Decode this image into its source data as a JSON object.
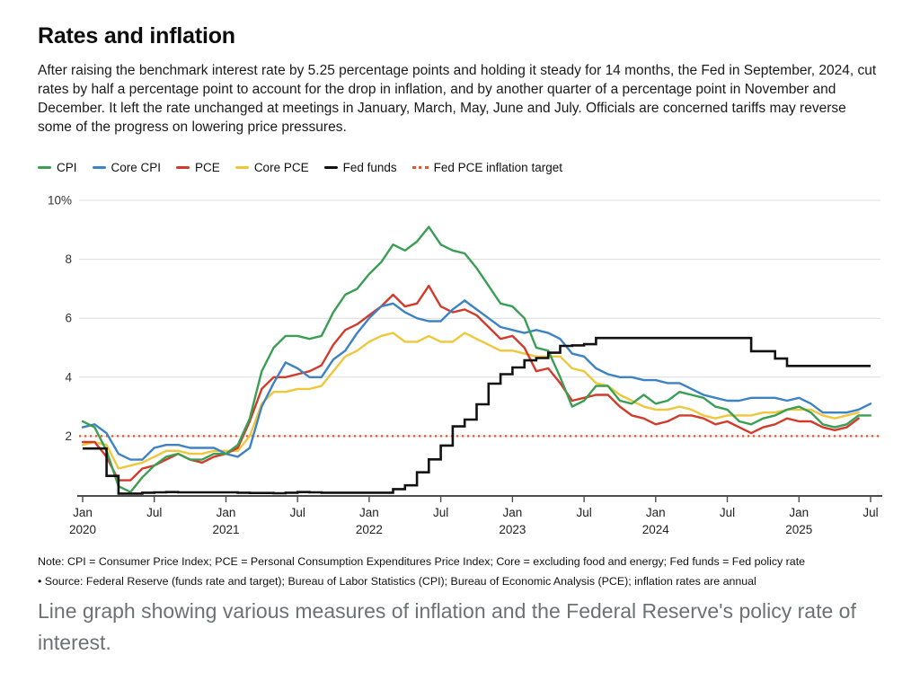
{
  "page": {
    "title": "Rates and inflation",
    "intro": "After raising the benchmark interest rate by 5.25 percentage points and holding it steady for 14 months, the Fed in September, 2024, cut rates by half a percentage point to account for the drop in inflation, and by another quarter of a percentage point in November and December. It left the rate unchanged at meetings in January, March, May, June and July. Officials are concerned tariffs may reverse some of the progress on lowering price pressures.",
    "note_line1": "Note: CPI = Consumer Price Index; PCE = Personal Consumption Expenditures Price Index; Core = excluding food and energy; Fed funds = Fed policy rate",
    "note_line2": "• Source: Federal Reserve (funds rate and target); Bureau of Labor Statistics (CPI); Bureau of Economic Analysis (PCE); inflation rates are annual",
    "caption": "Line graph showing various measures of inflation and the Federal Reserve's policy rate of interest."
  },
  "colors": {
    "cpi": "#3a9e54",
    "core_cpi": "#3d83c4",
    "pce": "#d23b2c",
    "core_pce": "#eec73c",
    "fed_funds": "#111111",
    "target": "#e4572e",
    "grid": "#dcdcdc",
    "axis": "#4d4d4d",
    "tick_label": "#222222",
    "y_label": "#333333"
  },
  "chart_data": {
    "type": "line",
    "title": "Rates and inflation",
    "xlabel": "",
    "ylabel": "percent",
    "y_unit": "%",
    "ylim": [
      0,
      10.5
    ],
    "grid": true,
    "legend_position": "top",
    "x_months_start": "Jan 2020",
    "x_months_end": "Jul 2025",
    "y_ticks": [
      2,
      4,
      6,
      8,
      10
    ],
    "y_top_tick_label": "10%",
    "x_ticks": [
      {
        "m": 0,
        "label": "Jan",
        "year": "2020"
      },
      {
        "m": 6,
        "label": "Jul"
      },
      {
        "m": 12,
        "label": "Jan",
        "year": "2021"
      },
      {
        "m": 18,
        "label": "Jul"
      },
      {
        "m": 24,
        "label": "Jan",
        "year": "2022"
      },
      {
        "m": 30,
        "label": "Jul"
      },
      {
        "m": 36,
        "label": "Jan",
        "year": "2023"
      },
      {
        "m": 42,
        "label": "Jul"
      },
      {
        "m": 48,
        "label": "Jan",
        "year": "2024"
      },
      {
        "m": 54,
        "label": "Jul"
      },
      {
        "m": 60,
        "label": "Jan",
        "year": "2025"
      },
      {
        "m": 66,
        "label": "Jul"
      }
    ],
    "series": [
      {
        "name": "CPI",
        "key": "cpi",
        "style": "line",
        "color": "#3a9e54",
        "values": [
          2.5,
          2.3,
          1.5,
          0.3,
          0.1,
          0.6,
          1.0,
          1.3,
          1.4,
          1.2,
          1.2,
          1.4,
          1.4,
          1.7,
          2.6,
          4.2,
          5.0,
          5.4,
          5.4,
          5.3,
          5.4,
          6.2,
          6.8,
          7.0,
          7.5,
          7.9,
          8.5,
          8.3,
          8.6,
          9.1,
          8.5,
          8.3,
          8.2,
          7.7,
          7.1,
          6.5,
          6.4,
          6.0,
          5.0,
          4.9,
          4.0,
          3.0,
          3.2,
          3.7,
          3.7,
          3.2,
          3.1,
          3.4,
          3.1,
          3.2,
          3.5,
          3.4,
          3.3,
          3.0,
          2.9,
          2.5,
          2.4,
          2.6,
          2.7,
          2.9,
          3.0,
          2.8,
          2.4,
          2.3,
          2.4,
          2.7,
          2.7
        ]
      },
      {
        "name": "Core CPI",
        "key": "core_cpi",
        "style": "line",
        "color": "#3d83c4",
        "values": [
          2.3,
          2.4,
          2.1,
          1.4,
          1.2,
          1.2,
          1.6,
          1.7,
          1.7,
          1.6,
          1.6,
          1.6,
          1.4,
          1.3,
          1.6,
          3.0,
          3.8,
          4.5,
          4.3,
          4.0,
          4.0,
          4.6,
          4.9,
          5.5,
          6.0,
          6.4,
          6.5,
          6.2,
          6.0,
          5.9,
          5.9,
          6.3,
          6.6,
          6.3,
          6.0,
          5.7,
          5.6,
          5.5,
          5.6,
          5.5,
          5.3,
          4.8,
          4.7,
          4.3,
          4.1,
          4.0,
          4.0,
          3.9,
          3.9,
          3.8,
          3.8,
          3.6,
          3.4,
          3.3,
          3.2,
          3.2,
          3.3,
          3.3,
          3.3,
          3.2,
          3.3,
          3.1,
          2.8,
          2.8,
          2.8,
          2.9,
          3.1
        ]
      },
      {
        "name": "PCE",
        "key": "pce",
        "style": "line",
        "color": "#d23b2c",
        "values": [
          1.8,
          1.8,
          1.3,
          0.5,
          0.5,
          0.9,
          1.0,
          1.2,
          1.4,
          1.2,
          1.1,
          1.3,
          1.4,
          1.6,
          2.5,
          3.6,
          4.0,
          4.0,
          4.1,
          4.2,
          4.4,
          5.1,
          5.6,
          5.8,
          6.1,
          6.4,
          6.8,
          6.4,
          6.5,
          7.1,
          6.4,
          6.2,
          6.3,
          6.1,
          5.7,
          5.3,
          5.4,
          5.0,
          4.2,
          4.3,
          3.8,
          3.2,
          3.3,
          3.4,
          3.4,
          3.0,
          2.7,
          2.6,
          2.4,
          2.5,
          2.7,
          2.7,
          2.6,
          2.4,
          2.5,
          2.3,
          2.1,
          2.3,
          2.4,
          2.6,
          2.5,
          2.5,
          2.3,
          2.2,
          2.3,
          2.6
        ]
      },
      {
        "name": "Core PCE",
        "key": "core_pce",
        "style": "line",
        "color": "#eec73c",
        "values": [
          1.7,
          1.8,
          1.7,
          0.9,
          1.0,
          1.1,
          1.3,
          1.5,
          1.5,
          1.4,
          1.4,
          1.5,
          1.5,
          1.5,
          2.0,
          3.1,
          3.5,
          3.5,
          3.6,
          3.6,
          3.7,
          4.2,
          4.7,
          4.9,
          5.2,
          5.4,
          5.5,
          5.2,
          5.2,
          5.4,
          5.2,
          5.2,
          5.5,
          5.3,
          5.1,
          4.9,
          4.9,
          4.8,
          4.7,
          4.7,
          4.7,
          4.3,
          4.2,
          3.8,
          3.7,
          3.4,
          3.2,
          3.0,
          2.9,
          2.9,
          3.0,
          2.9,
          2.7,
          2.6,
          2.7,
          2.7,
          2.7,
          2.8,
          2.8,
          2.9,
          2.9,
          2.9,
          2.7,
          2.6,
          2.7,
          2.8
        ]
      },
      {
        "name": "Fed funds",
        "key": "fed_funds",
        "style": "step",
        "color": "#111111",
        "values": [
          1.58,
          1.58,
          0.65,
          0.05,
          0.05,
          0.08,
          0.09,
          0.1,
          0.09,
          0.09,
          0.09,
          0.09,
          0.09,
          0.08,
          0.07,
          0.07,
          0.06,
          0.08,
          0.1,
          0.09,
          0.08,
          0.08,
          0.08,
          0.08,
          0.08,
          0.08,
          0.2,
          0.33,
          0.77,
          1.21,
          1.68,
          2.33,
          2.56,
          3.08,
          3.78,
          4.1,
          4.33,
          4.57,
          4.65,
          4.83,
          5.06,
          5.08,
          5.12,
          5.33,
          5.33,
          5.33,
          5.33,
          5.33,
          5.33,
          5.33,
          5.33,
          5.33,
          5.33,
          5.33,
          5.33,
          5.33,
          4.88,
          4.88,
          4.63,
          4.38,
          4.38,
          4.38,
          4.38,
          4.38,
          4.38,
          4.38,
          4.38
        ]
      },
      {
        "name": "Fed PCE inflation target",
        "key": "target",
        "style": "dotted-hline",
        "color": "#e4572e",
        "value": 2
      }
    ]
  }
}
